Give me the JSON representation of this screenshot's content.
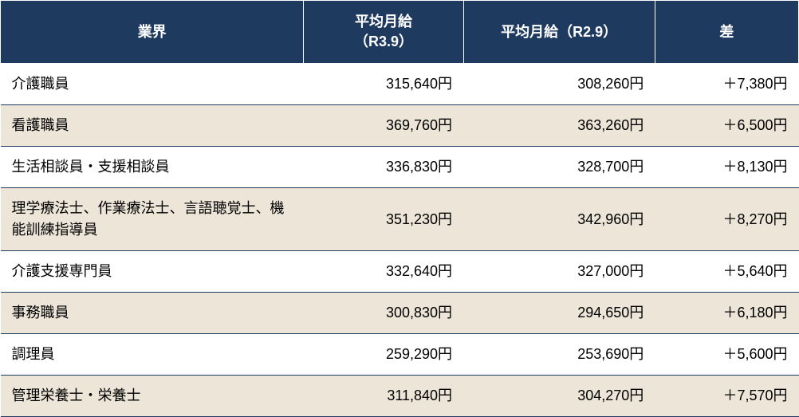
{
  "table": {
    "header_bg": "#1f3a5f",
    "header_fg": "#ffffff",
    "row_odd_bg": "#ffffff",
    "row_even_bg": "#ece5d8",
    "border_color": "#1f3a5f",
    "font_size": 18,
    "columns": [
      {
        "key": "industry",
        "label": "業界",
        "align": "left"
      },
      {
        "key": "salary_r39",
        "label": "平均月給（R3.9）",
        "align": "right"
      },
      {
        "key": "salary_r29",
        "label": "平均月給（R2.9）",
        "align": "right"
      },
      {
        "key": "diff",
        "label": "差",
        "align": "right"
      }
    ],
    "rows": [
      {
        "industry": "介護職員",
        "salary_r39": "315,640円",
        "salary_r29": "308,260円",
        "diff": "＋7,380円"
      },
      {
        "industry": "看護職員",
        "salary_r39": "369,760円",
        "salary_r29": "363,260円",
        "diff": "＋6,500円"
      },
      {
        "industry": "生活相談員・支援相談員",
        "salary_r39": "336,830円",
        "salary_r29": "328,700円",
        "diff": "＋8,130円"
      },
      {
        "industry": "理学療法士、作業療法士、言語聴覚士、機能訓練指導員",
        "salary_r39": "351,230円",
        "salary_r29": "342,960円",
        "diff": "＋8,270円"
      },
      {
        "industry": "介護支援専門員",
        "salary_r39": "332,640円",
        "salary_r29": "327,000円",
        "diff": "＋5,640円"
      },
      {
        "industry": "事務職員",
        "salary_r39": "300,830円",
        "salary_r29": "294,650円",
        "diff": "＋6,180円"
      },
      {
        "industry": "調理員",
        "salary_r39": "259,290円",
        "salary_r29": "253,690円",
        "diff": "＋5,600円"
      },
      {
        "industry": "管理栄養士・栄養士",
        "salary_r39": "311,840円",
        "salary_r29": "304,270円",
        "diff": "＋7,570円"
      }
    ]
  }
}
